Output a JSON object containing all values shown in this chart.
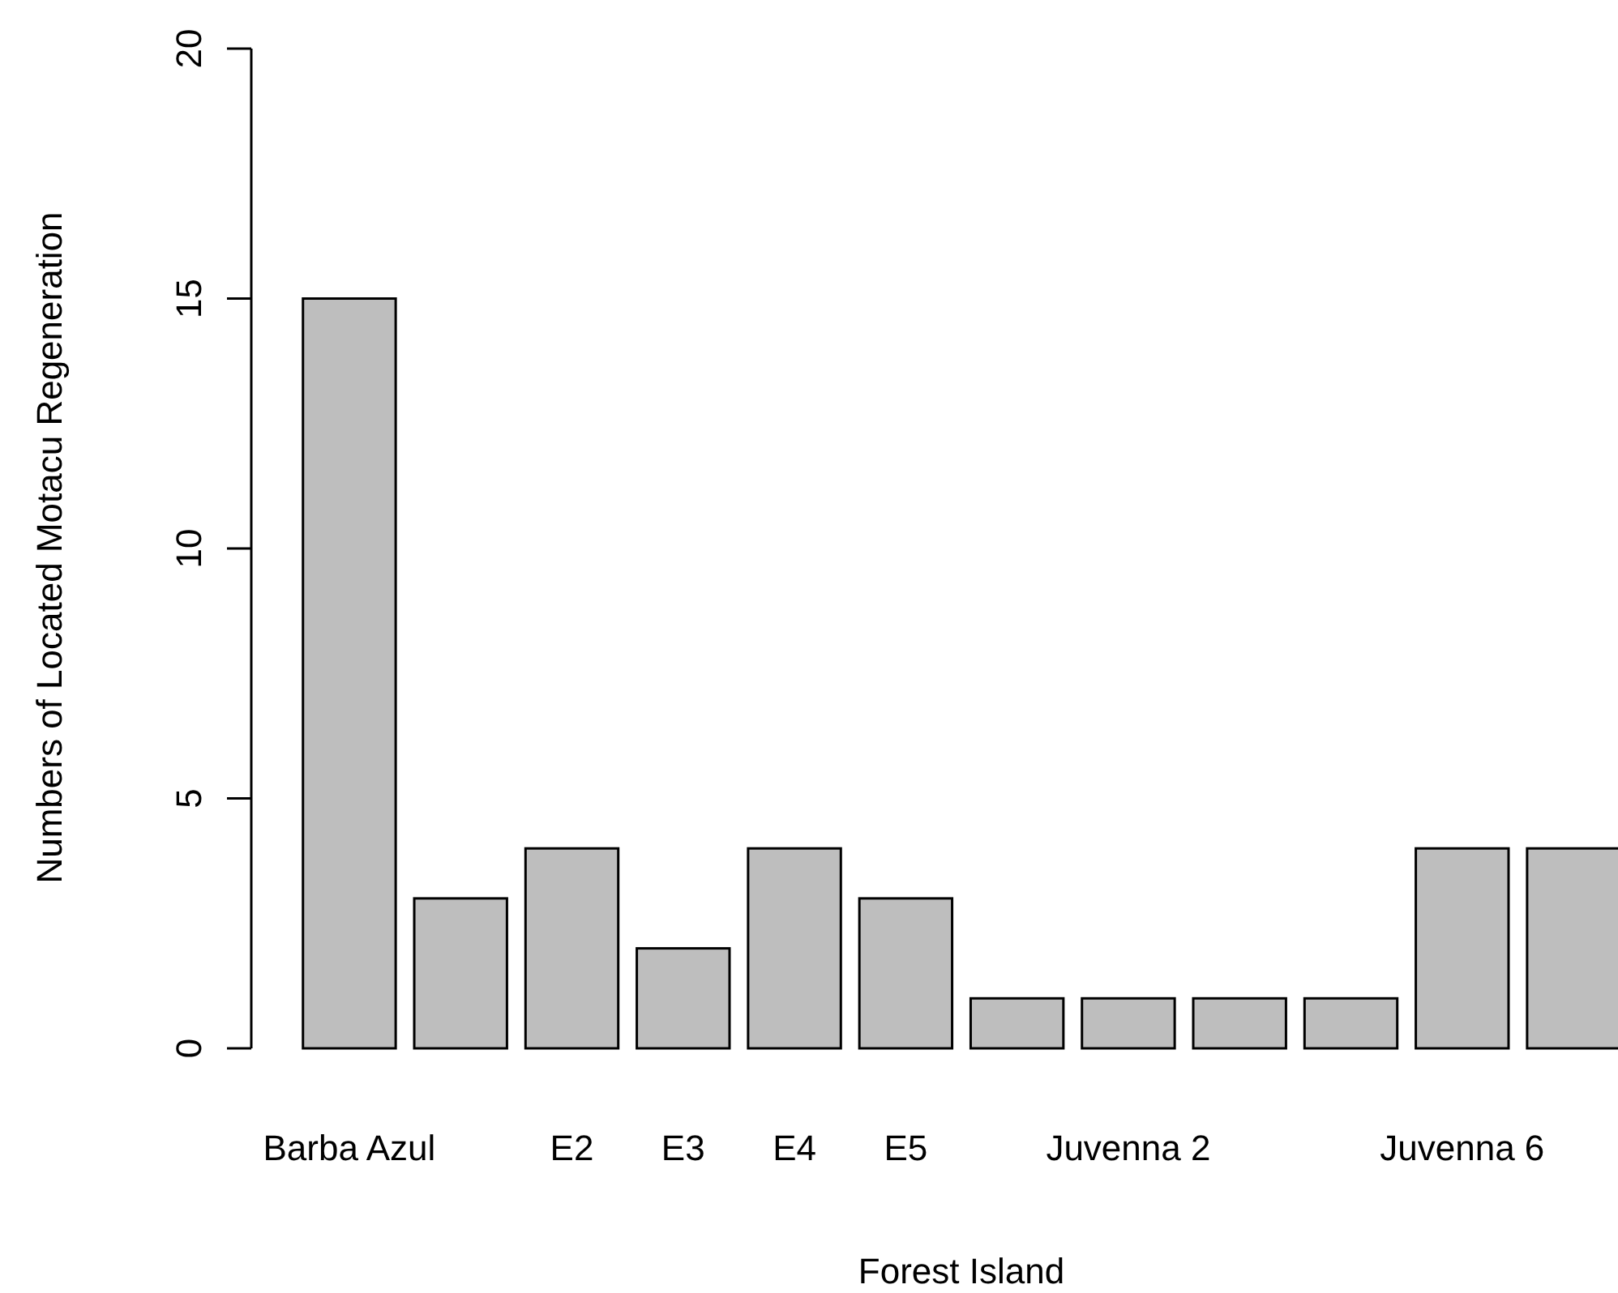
{
  "chart_data": {
    "type": "bar",
    "xlabel": "Forest Island",
    "ylabel": "Numbers of Located Motacu Regeneration",
    "categories": [
      "Barba Azul",
      null,
      "E2",
      "E3",
      "E4",
      "E5",
      null,
      "Juvenna 2",
      null,
      null,
      "Juvenna 6",
      null
    ],
    "values": [
      15,
      3,
      4,
      2,
      4,
      3,
      1,
      1,
      1,
      1,
      4,
      4
    ],
    "color": "#bebebe",
    "ylim": [
      0,
      20
    ],
    "yticks": [
      0,
      5,
      10,
      15,
      20
    ],
    "grid": false
  }
}
